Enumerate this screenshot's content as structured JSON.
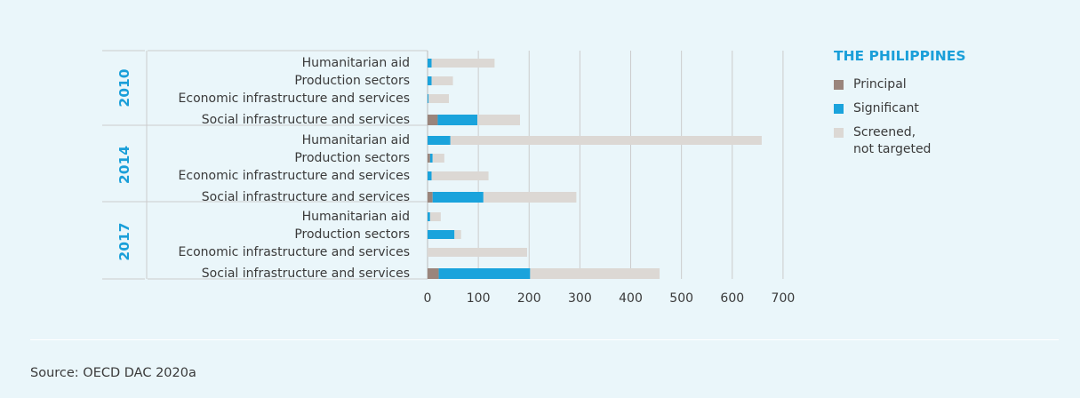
{
  "colors": {
    "principal": "#9a857c",
    "significant": "#1aa3dc",
    "screened": "#dcd8d4",
    "accent": "#1a9fd9",
    "grid": "#cccccc",
    "text": "#3a3a3a",
    "background": "#eaf6fa"
  },
  "legend": {
    "title": "THE PHILIPPINES",
    "items": [
      {
        "label": "Principal",
        "color": "#9a857c"
      },
      {
        "label": "Significant",
        "color": "#1aa3dc"
      },
      {
        "label": "Screened,\nnot targeted",
        "color": "#dcd8d4"
      }
    ]
  },
  "source": "Source: OECD DAC 2020a",
  "chart_data": {
    "type": "bar",
    "orientation": "horizontal",
    "stacked": true,
    "xlim": [
      0,
      700
    ],
    "xticks": [
      0,
      100,
      200,
      300,
      400,
      500,
      600,
      700
    ],
    "grid": true,
    "legend_position": "right",
    "groups": [
      {
        "year": "2010",
        "categories": [
          "Humanitarian aid",
          "Production sectors",
          "Economic infrastructure and services",
          "Social infrastructure and services"
        ],
        "series": [
          {
            "name": "Principal",
            "values": [
              0,
              0,
              0,
              20
            ]
          },
          {
            "name": "Significant",
            "values": [
              8,
              8,
              2,
              78
            ]
          },
          {
            "name": "Screened, not targeted",
            "values": [
              124,
              42,
              40,
              84
            ]
          }
        ]
      },
      {
        "year": "2014",
        "categories": [
          "Humanitarian aid",
          "Production sectors",
          "Economic infrastructure and services",
          "Social infrastructure and services"
        ],
        "series": [
          {
            "name": "Principal",
            "values": [
              0,
              5,
              0,
              10
            ]
          },
          {
            "name": "Significant",
            "values": [
              45,
              5,
              8,
              100
            ]
          },
          {
            "name": "Screened, not targeted",
            "values": [
              613,
              23,
              112,
              183
            ]
          }
        ]
      },
      {
        "year": "2017",
        "categories": [
          "Humanitarian aid",
          "Production sectors",
          "Economic infrastructure and services",
          "Social infrastructure and services"
        ],
        "series": [
          {
            "name": "Principal",
            "values": [
              0,
              0,
              0,
              22
            ]
          },
          {
            "name": "Significant",
            "values": [
              5,
              53,
              0,
              180
            ]
          },
          {
            "name": "Screened, not targeted",
            "values": [
              21,
              13,
              196,
              255
            ]
          }
        ]
      }
    ]
  }
}
